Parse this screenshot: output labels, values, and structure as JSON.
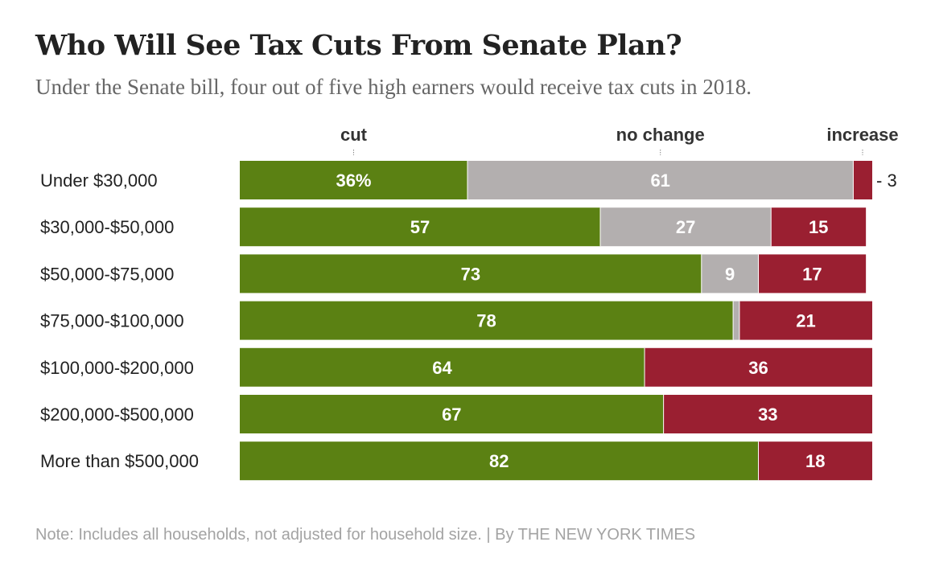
{
  "title": "Who Will See Tax Cuts From Senate Plan?",
  "subtitle": "Under the Senate bill, four out of five high earners would receive tax cuts in 2018.",
  "note": "Note: Includes all households, not adjusted for household size. | By THE NEW YORK TIMES",
  "chart_data": {
    "type": "bar",
    "orientation": "horizontal",
    "stacked": true,
    "xlim": [
      0,
      100
    ],
    "unit": "%",
    "categories": [
      "Under $30,000",
      "$30,000-$50,000",
      "$50,000-$75,000",
      "$75,000-$100,000",
      "$100,000-$200,000",
      "$200,000-$500,000",
      "More than $500,000"
    ],
    "series": [
      {
        "name": "cut",
        "color": "#5b8113",
        "values": [
          36,
          57,
          73,
          78,
          64,
          67,
          82
        ]
      },
      {
        "name": "no change",
        "color": "#b3afaf",
        "values": [
          61,
          27,
          9,
          1,
          0,
          0,
          0
        ]
      },
      {
        "name": "increase",
        "color": "#9a1f31",
        "values": [
          3,
          15,
          17,
          21,
          36,
          33,
          18
        ]
      }
    ],
    "data_labels": [
      [
        "36%",
        "61",
        "3"
      ],
      [
        "57",
        "27",
        "15"
      ],
      [
        "73",
        "9",
        "17"
      ],
      [
        "78",
        "",
        "21"
      ],
      [
        "64",
        "",
        "36"
      ],
      [
        "67",
        "",
        "33"
      ],
      [
        "82",
        "",
        "18"
      ]
    ],
    "outside_label_prefix": "- ",
    "legend_position": "top",
    "grid": false
  }
}
